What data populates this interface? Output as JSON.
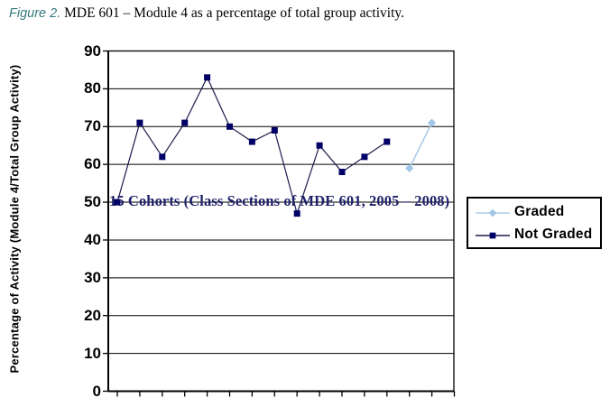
{
  "caption": {
    "label": "Figure 2.",
    "text": " MDE 601 – Module 4 as a percentage of total group activity."
  },
  "colors": {
    "caption_label": "#36797e",
    "annotation": "#1f2168",
    "axis": "#000000",
    "grid": "#000000"
  },
  "chart_data": {
    "type": "line",
    "title": "",
    "xlabel": "",
    "ylabel": "Percentage of Activity (Module 4/Total Group Activity)",
    "ylim": [
      0,
      90
    ],
    "yticks": [
      90,
      80,
      70,
      60,
      50,
      40,
      30,
      20,
      10,
      0
    ],
    "x": [
      1,
      2,
      3,
      4,
      5,
      6,
      7,
      8,
      9,
      10,
      11,
      12,
      13,
      14,
      15
    ],
    "x_tick_labels_visible": false,
    "grid": true,
    "legend_position": "right",
    "annotation": "15 Cohorts (Class Sections of MDE 601, 2005 – 2008)",
    "series": [
      {
        "name": "Graded",
        "marker": "diamond",
        "color_line": "#aecbe8",
        "color_marker": "#a2c4e6",
        "values": [
          null,
          null,
          null,
          null,
          null,
          null,
          null,
          null,
          null,
          null,
          null,
          null,
          null,
          59,
          71
        ]
      },
      {
        "name": "Not Graded",
        "marker": "square",
        "color_line": "#1c1c4e",
        "color_marker": "#000066",
        "values": [
          50,
          71,
          62,
          71,
          83,
          70,
          66,
          69,
          47,
          65,
          58,
          62,
          66,
          null,
          null
        ]
      }
    ]
  }
}
